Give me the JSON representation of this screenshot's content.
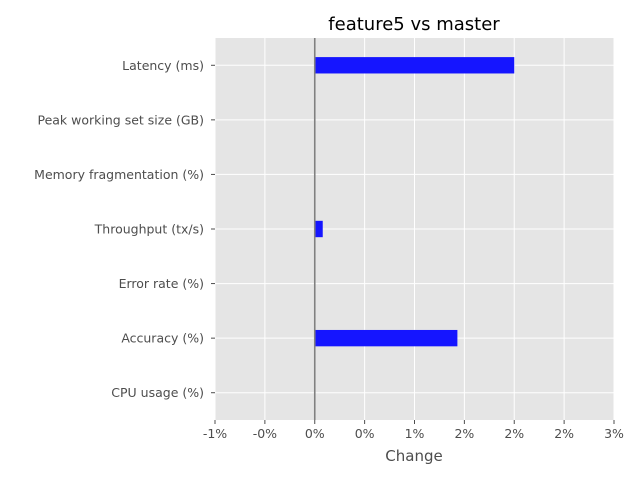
{
  "chart_data": {
    "type": "bar",
    "orientation": "horizontal",
    "title": "feature5 vs master",
    "xlabel": "Change",
    "ylabel": "",
    "categories": [
      "Latency (ms)",
      "Peak working set size (GB)",
      "Memory fragmentation (%)",
      "Throughput (tx/s)",
      "Error rate (%)",
      "Accuracy (%)",
      "CPU usage (%)"
    ],
    "values": [
      2.0,
      0.0,
      0.0,
      0.08,
      0.0,
      1.43,
      0.0
    ],
    "xlim": [
      -1.0,
      3.0
    ],
    "xticks": [
      -1.0,
      -0.5,
      0.0,
      0.5,
      1.0,
      1.5,
      2.0,
      2.5,
      3.0
    ],
    "xtick_labels": [
      "-1%",
      "-0%",
      "0%",
      "0%",
      "1%",
      "2%",
      "2%",
      "2%",
      "3%"
    ],
    "grid": true,
    "colors": {
      "bar": "#1515ff",
      "plot_background": "#e5e5e5",
      "grid": "#ffffff",
      "zero_line": "#808080",
      "tick": "#4d4d4d"
    }
  }
}
